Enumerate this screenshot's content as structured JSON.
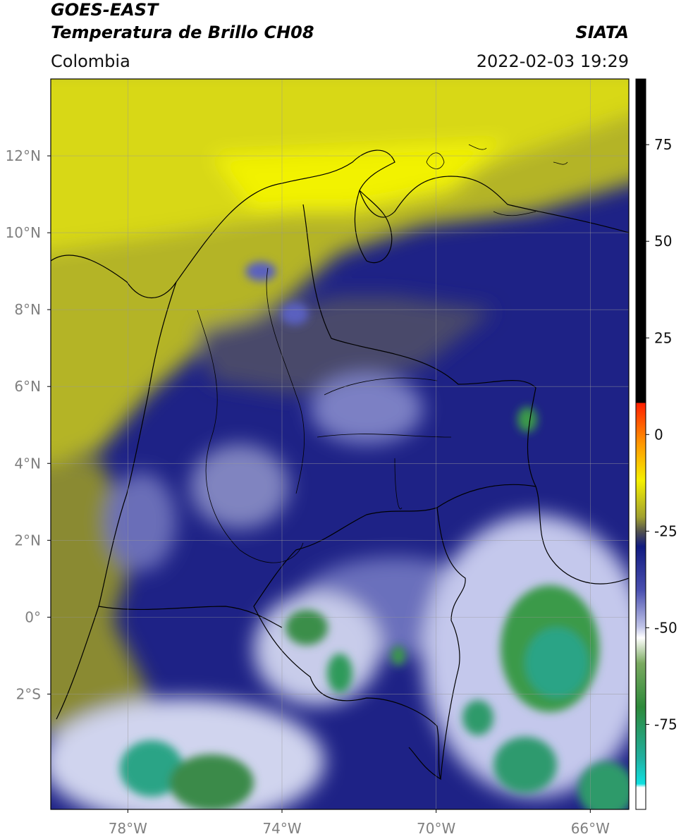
{
  "header": {
    "title": "GOES-EAST",
    "subtitle": "Temperatura de Brillo CH08",
    "source": "SIATA",
    "region": "Colombia",
    "datetime": "2022-02-03 19:29"
  },
  "map": {
    "xlim": [
      -80,
      -65
    ],
    "ylim": [
      -5,
      14
    ],
    "grid": true,
    "lat_ticks": [
      {
        "value": 12,
        "label": "12°N"
      },
      {
        "value": 10,
        "label": "10°N"
      },
      {
        "value": 8,
        "label": "8°N"
      },
      {
        "value": 6,
        "label": "6°N"
      },
      {
        "value": 4,
        "label": "4°N"
      },
      {
        "value": 2,
        "label": "2°N"
      },
      {
        "value": 0,
        "label": "0°"
      },
      {
        "value": -2,
        "label": "2°S"
      }
    ],
    "lon_ticks": [
      {
        "value": -78,
        "label": "78°W"
      },
      {
        "value": -74,
        "label": "74°W"
      },
      {
        "value": -70,
        "label": "70°W"
      },
      {
        "value": -66,
        "label": "66°W"
      }
    ]
  },
  "colorbar": {
    "lim": [
      -97,
      92
    ],
    "ticks": [
      75,
      50,
      25,
      0,
      -25,
      -50,
      -75
    ]
  }
}
